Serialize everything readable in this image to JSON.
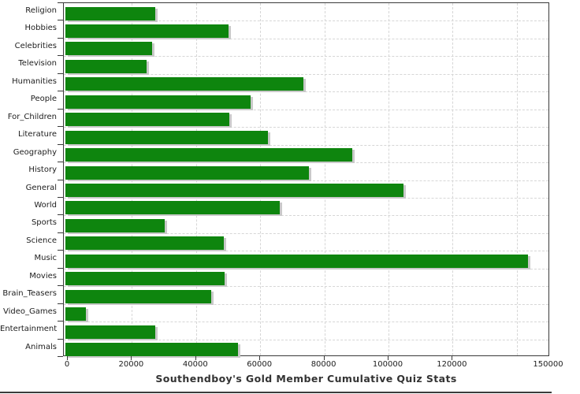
{
  "chart_data": {
    "type": "bar",
    "orientation": "horizontal",
    "title": "Southendboy's Gold Member Cumulative Quiz Stats",
    "categories": [
      "Religion",
      "Hobbies",
      "Celebrities",
      "Television",
      "Humanities",
      "People",
      "For_Children",
      "Literature",
      "Geography",
      "History",
      "General",
      "World",
      "Sports",
      "Science",
      "Music",
      "Movies",
      "Brain_Teasers",
      "Video_Games",
      "Entertainment",
      "Animals"
    ],
    "values": [
      27400,
      50400,
      26600,
      24800,
      73800,
      57300,
      50500,
      62600,
      88900,
      75400,
      104900,
      66400,
      30500,
      48800,
      143700,
      49100,
      45000,
      6000,
      27400,
      53300
    ],
    "xlabel": "",
    "ylabel": "",
    "xlim": [
      0,
      150000
    ],
    "x_tick_step": 20000,
    "x_tick_labels": [
      "0",
      "20000",
      "40000",
      "60000",
      "80000",
      "100000",
      "120000"
    ],
    "x_axis_end_label": "150000",
    "grid": "dashed",
    "legend": "none"
  },
  "style": {
    "bar_color": "#0e850e",
    "bar_shadow_color": "#c9c9c9",
    "grid_color": "#d6d6d6",
    "plot_border_color": "#3a3a3a",
    "text_color": "#1d1d1d",
    "title_color": "#333333",
    "bottom_rule_color": "#3b3b3b"
  }
}
